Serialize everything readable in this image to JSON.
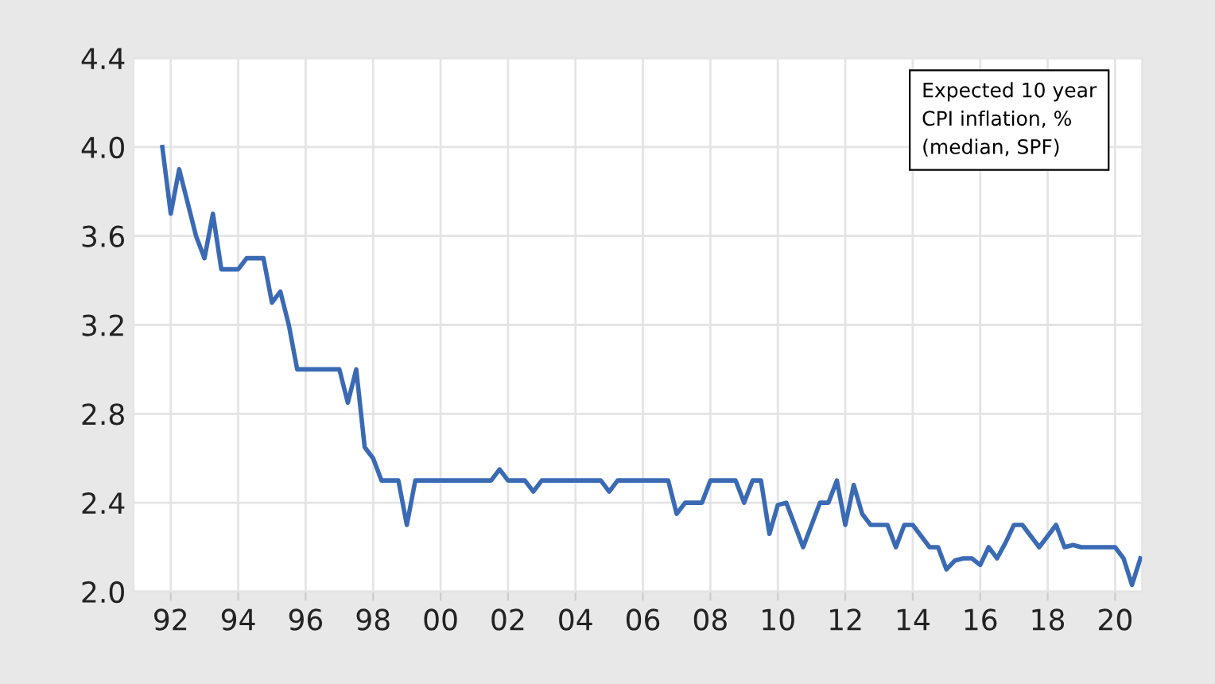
{
  "chart_data": {
    "type": "line",
    "x": [
      1991.75,
      1992.0,
      1992.25,
      1992.5,
      1992.75,
      1993.0,
      1993.25,
      1993.5,
      1993.75,
      1994.0,
      1994.25,
      1994.5,
      1994.75,
      1995.0,
      1995.25,
      1995.5,
      1995.75,
      1996.0,
      1996.25,
      1996.5,
      1996.75,
      1997.0,
      1997.25,
      1997.5,
      1997.75,
      1998.0,
      1998.25,
      1998.5,
      1998.75,
      1999.0,
      1999.25,
      1999.5,
      1999.75,
      2000.0,
      2000.25,
      2000.5,
      2000.75,
      2001.0,
      2001.25,
      2001.5,
      2001.75,
      2002.0,
      2002.25,
      2002.5,
      2002.75,
      2003.0,
      2003.25,
      2003.5,
      2003.75,
      2004.0,
      2004.25,
      2004.5,
      2004.75,
      2005.0,
      2005.25,
      2005.5,
      2005.75,
      2006.0,
      2006.25,
      2006.5,
      2006.75,
      2007.0,
      2007.25,
      2007.5,
      2007.75,
      2008.0,
      2008.25,
      2008.5,
      2008.75,
      2009.0,
      2009.25,
      2009.5,
      2009.75,
      2010.0,
      2010.25,
      2010.5,
      2010.75,
      2011.0,
      2011.25,
      2011.5,
      2011.75,
      2012.0,
      2012.25,
      2012.5,
      2012.75,
      2013.0,
      2013.25,
      2013.5,
      2013.75,
      2014.0,
      2014.25,
      2014.5,
      2014.75,
      2015.0,
      2015.25,
      2015.5,
      2015.75,
      2016.0,
      2016.25,
      2016.5,
      2016.75,
      2017.0,
      2017.25,
      2017.5,
      2017.75,
      2018.0,
      2018.25,
      2018.5,
      2018.75,
      2019.0,
      2019.25,
      2019.5,
      2019.75,
      2020.0,
      2020.25,
      2020.5,
      2020.75
    ],
    "series": [
      {
        "color": "#3a6ab4",
        "values": [
          4.0,
          3.7,
          3.9,
          3.75,
          3.6,
          3.5,
          3.7,
          3.45,
          3.45,
          3.45,
          3.5,
          3.5,
          3.5,
          3.3,
          3.35,
          3.2,
          3.0,
          3.0,
          3.0,
          3.0,
          3.0,
          3.0,
          2.85,
          3.0,
          2.65,
          2.6,
          2.5,
          2.5,
          2.5,
          2.3,
          2.5,
          2.5,
          2.5,
          2.5,
          2.5,
          2.5,
          2.5,
          2.5,
          2.5,
          2.5,
          2.55,
          2.5,
          2.5,
          2.5,
          2.45,
          2.5,
          2.5,
          2.5,
          2.5,
          2.5,
          2.5,
          2.5,
          2.5,
          2.45,
          2.5,
          2.5,
          2.5,
          2.5,
          2.5,
          2.5,
          2.5,
          2.35,
          2.4,
          2.4,
          2.4,
          2.5,
          2.5,
          2.5,
          2.5,
          2.4,
          2.5,
          2.5,
          2.26,
          2.39,
          2.4,
          2.3,
          2.2,
          2.3,
          2.4,
          2.4,
          2.5,
          2.3,
          2.48,
          2.35,
          2.3,
          2.3,
          2.3,
          2.2,
          2.3,
          2.3,
          2.25,
          2.2,
          2.2,
          2.1,
          2.14,
          2.15,
          2.15,
          2.12,
          2.2,
          2.15,
          2.22,
          2.3,
          2.3,
          2.25,
          2.2,
          2.25,
          2.3,
          2.2,
          2.21,
          2.2,
          2.2,
          2.2,
          2.2,
          2.2,
          2.15,
          2.03,
          2.15
        ]
      }
    ],
    "xlim": [
      1990.9,
      2020.8
    ],
    "xticks": [
      {
        "value": 1992,
        "label": "92"
      },
      {
        "value": 1994,
        "label": "94"
      },
      {
        "value": 1996,
        "label": "96"
      },
      {
        "value": 1998,
        "label": "98"
      },
      {
        "value": 2000,
        "label": "00"
      },
      {
        "value": 2002,
        "label": "02"
      },
      {
        "value": 2004,
        "label": "04"
      },
      {
        "value": 2006,
        "label": "06"
      },
      {
        "value": 2008,
        "label": "08"
      },
      {
        "value": 2010,
        "label": "10"
      },
      {
        "value": 2012,
        "label": "12"
      },
      {
        "value": 2014,
        "label": "14"
      },
      {
        "value": 2016,
        "label": "16"
      },
      {
        "value": 2018,
        "label": "18"
      },
      {
        "value": 2020,
        "label": "20"
      }
    ],
    "ylim": [
      2.0,
      4.4
    ],
    "yticks": [
      {
        "value": 2.0,
        "label": "2.0"
      },
      2.4,
      2.8,
      3.2,
      3.6,
      {
        "value": 4.0,
        "label": "4.0"
      },
      4.4
    ],
    "grid": true,
    "line_style": "solid",
    "marker": "none",
    "annotations": [
      "Expected 10 year\nCPI inflation, %\n(median, SPF)"
    ]
  }
}
